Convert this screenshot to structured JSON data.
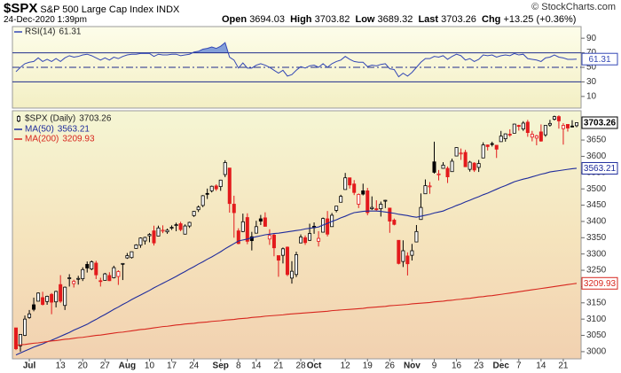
{
  "header": {
    "symbol": "$SPX",
    "name": "S&P 500 Large Cap Index",
    "exchange": "INDX",
    "datetime": "24-Dec-2020 1:39pm",
    "copyright": "© StockCharts.com",
    "quote_labels": [
      "Open",
      "High",
      "Low",
      "Last"
    ],
    "change_label": "Chg",
    "change": "+13.25 (+0.36%)"
  },
  "chart_data": [
    {
      "type": "rsi",
      "name": "RSI(14)",
      "color": "#3347b5",
      "fill_color": "#6d8fd8",
      "band_color": "#1f2c8c",
      "ylim": [
        -6,
        106
      ],
      "yticks": [
        10,
        30,
        50,
        70,
        90
      ],
      "bands": [
        70,
        30
      ],
      "midline": 50,
      "values": [
        44,
        50,
        55,
        57,
        58,
        63,
        58,
        61,
        58,
        62,
        58,
        63,
        66,
        64,
        65,
        67,
        68,
        66,
        63,
        60,
        63,
        60,
        64,
        62,
        65,
        67,
        68,
        68,
        69,
        69,
        69,
        65,
        68,
        67,
        67,
        68,
        68,
        66,
        67,
        68,
        71,
        72,
        75,
        76,
        78,
        76,
        79,
        84,
        64,
        60,
        49,
        56,
        49,
        49,
        53,
        55,
        53,
        50,
        46,
        42,
        46,
        38,
        40,
        46,
        51,
        49,
        52,
        53,
        50,
        55,
        50,
        55,
        58,
        60,
        65,
        61,
        58,
        57,
        57,
        51,
        53,
        52,
        54,
        55,
        48,
        47,
        37,
        42,
        38,
        43,
        50,
        57,
        62,
        62,
        65,
        64,
        66,
        61,
        65,
        68,
        66,
        60,
        62,
        58,
        61,
        67,
        66,
        67,
        64,
        66,
        67,
        66,
        69,
        67,
        68,
        62,
        61,
        60,
        58,
        63,
        64,
        67,
        64,
        63,
        61,
        61,
        61.31
      ]
    },
    {
      "type": "candlestick",
      "name": "$SPX (Daily)",
      "up_color": "#000000",
      "down_color": "#e31a1c",
      "ylim": [
        2978,
        3740
      ],
      "yticks": [
        3000,
        3050,
        3100,
        3150,
        3200,
        3250,
        3300,
        3350,
        3400,
        3450,
        3500,
        3550,
        3600,
        3650
      ],
      "categories": [
        null,
        null,
        null,
        "Jul",
        null,
        null,
        null,
        null,
        null,
        null,
        "13",
        null,
        null,
        null,
        null,
        "20",
        null,
        null,
        null,
        null,
        "27",
        null,
        null,
        null,
        null,
        "Aug",
        null,
        null,
        null,
        null,
        "10",
        null,
        null,
        null,
        null,
        "17",
        null,
        null,
        null,
        null,
        "24",
        null,
        null,
        null,
        null,
        null,
        "Sep",
        null,
        null,
        null,
        "8",
        null,
        null,
        null,
        "14",
        null,
        null,
        null,
        null,
        "21",
        null,
        null,
        null,
        null,
        "28",
        null,
        null,
        "Oct",
        null,
        null,
        null,
        null,
        null,
        null,
        "12",
        null,
        null,
        null,
        null,
        "19",
        null,
        null,
        null,
        null,
        "26",
        null,
        null,
        null,
        null,
        "Nov",
        null,
        null,
        null,
        null,
        "9",
        null,
        null,
        null,
        null,
        "16",
        null,
        null,
        null,
        null,
        "23",
        null,
        null,
        null,
        null,
        "Dec",
        null,
        null,
        null,
        "7",
        null,
        null,
        null,
        null,
        "14",
        null,
        null,
        null,
        null,
        "21",
        null,
        null,
        null
      ],
      "open": [
        3073,
        3018,
        3050,
        3105,
        3144,
        3155,
        3166,
        3154,
        3176,
        3153,
        3206,
        3142,
        3225,
        3209,
        3225,
        3224,
        3268,
        3254,
        3272,
        3218,
        3219,
        3234,
        3227,
        3231,
        3270,
        3288,
        3289,
        3317,
        3327,
        3340,
        3356,
        3371,
        3355,
        3373,
        3368,
        3380,
        3388,
        3393,
        3361,
        3386,
        3418,
        3436,
        3449,
        3486,
        3494,
        3509,
        3507,
        3544,
        3564,
        3453,
        3371,
        3369,
        3412,
        3353,
        3364,
        3408,
        3411,
        3346,
        3358,
        3295,
        3296,
        3321,
        3226,
        3237,
        3334,
        3350,
        3342,
        3385,
        3339,
        3367,
        3408,
        3384,
        3434,
        3459,
        3498,
        3534,
        3515,
        3453,
        3494,
        3494,
        3439,
        3439,
        3439,
        3465,
        3441,
        3404,
        3342,
        3277,
        3294,
        3296,
        3337,
        3406,
        3485,
        3509,
        3583,
        3544,
        3563,
        3563,
        3553,
        3601,
        3610,
        3612,
        3560,
        3579,
        3566,
        3595,
        3635,
        3639,
        3634,
        3645,
        3654,
        3668,
        3671,
        3695,
        3684,
        3705,
        3659,
        3656,
        3675,
        3666,
        3696,
        3714,
        3722,
        3685,
        3698,
        3693,
        3694.03
      ],
      "high": [
        3073,
        3054,
        3111,
        3128,
        3166,
        3182,
        3184,
        3172,
        3180,
        3187,
        3235,
        3200,
        3238,
        3221,
        3233,
        3259,
        3277,
        3280,
        3279,
        3227,
        3242,
        3244,
        3264,
        3250,
        3272,
        3303,
        3307,
        3330,
        3351,
        3353,
        3364,
        3387,
        3387,
        3388,
        3378,
        3388,
        3396,
        3399,
        3391,
        3399,
        3432,
        3449,
        3481,
        3501,
        3510,
        3514,
        3528,
        3588,
        3564,
        3479,
        3379,
        3424,
        3425,
        3368,
        3402,
        3420,
        3428,
        3376,
        3362,
        3295,
        3320,
        3323,
        3278,
        3307,
        3360,
        3357,
        3393,
        3397,
        3370,
        3412,
        3432,
        3426,
        3447,
        3482,
        3549,
        3534,
        3527,
        3486,
        3516,
        3503,
        3477,
        3465,
        3461,
        3466,
        3441,
        3409,
        3342,
        3342,
        3305,
        3331,
        3389,
        3486,
        3529,
        3521,
        3645,
        3558,
        3582,
        3569,
        3593,
        3628,
        3624,
        3620,
        3586,
        3582,
        3589,
        3643,
        3636,
        3645,
        3634,
        3678,
        3670,
        3683,
        3700,
        3697,
        3708,
        3712,
        3678,
        3666,
        3698,
        3695,
        3712,
        3725,
        3726,
        3702,
        3698,
        3711,
        3703.82
      ],
      "low": [
        3005,
        3000,
        3048,
        3101,
        3124,
        3155,
        3142,
        3144,
        3115,
        3136,
        3150,
        3128,
        3200,
        3197,
        3206,
        3217,
        3243,
        3250,
        3223,
        3200,
        3219,
        3217,
        3225,
        3205,
        3220,
        3285,
        3286,
        3317,
        3319,
        3329,
        3336,
        3326,
        3355,
        3364,
        3362,
        3374,
        3370,
        3370,
        3360,
        3380,
        3414,
        3429,
        3444,
        3469,
        3489,
        3494,
        3494,
        3536,
        3427,
        3350,
        3330,
        3367,
        3330,
        3311,
        3364,
        3389,
        3384,
        3328,
        3293,
        3230,
        3271,
        3232,
        3209,
        3229,
        3333,
        3328,
        3340,
        3362,
        3323,
        3367,
        3354,
        3384,
        3428,
        3459,
        3498,
        3501,
        3481,
        3441,
        3480,
        3419,
        3435,
        3433,
        3415,
        3441,
        3365,
        3388,
        3268,
        3260,
        3234,
        3280,
        3337,
        3405,
        3485,
        3485,
        3547,
        3526,
        3563,
        3518,
        3553,
        3601,
        3589,
        3568,
        3553,
        3552,
        3552,
        3595,
        3618,
        3630,
        3595,
        3645,
        3645,
        3660,
        3671,
        3679,
        3678,
        3660,
        3646,
        3634,
        3645,
        3660,
        3691,
        3710,
        3685,
        3636,
        3676,
        3689,
        3689.32
      ],
      "close": [
        3009,
        3053,
        3100,
        3116,
        3130,
        3180,
        3145,
        3170,
        3152,
        3185,
        3155,
        3198,
        3227,
        3216,
        3225,
        3252,
        3257,
        3276,
        3236,
        3216,
        3239,
        3218,
        3258,
        3246,
        3271,
        3295,
        3307,
        3328,
        3349,
        3351,
        3360,
        3334,
        3380,
        3373,
        3373,
        3382,
        3390,
        3375,
        3386,
        3397,
        3431,
        3444,
        3479,
        3485,
        3508,
        3500,
        3527,
        3581,
        3455,
        3427,
        3332,
        3399,
        3339,
        3341,
        3384,
        3401,
        3385,
        3357,
        3319,
        3281,
        3316,
        3237,
        3247,
        3298,
        3352,
        3335,
        3363,
        3381,
        3348,
        3409,
        3361,
        3419,
        3447,
        3477,
        3534,
        3512,
        3489,
        3483,
        3484,
        3427,
        3443,
        3436,
        3453,
        3465,
        3401,
        3391,
        3271,
        3310,
        3270,
        3310,
        3369,
        3443,
        3510,
        3509,
        3551,
        3546,
        3573,
        3537,
        3585,
        3627,
        3610,
        3568,
        3582,
        3558,
        3578,
        3635,
        3630,
        3638,
        3622,
        3662,
        3669,
        3667,
        3699,
        3692,
        3702,
        3673,
        3668,
        3663,
        3647,
        3695,
        3701,
        3722,
        3709,
        3695,
        3687,
        3690.01,
        3703.26
      ],
      "series": [
        {
          "name": "MA(50)",
          "color": "#1f2c9c",
          "values": [
            2990,
            2996,
            3002,
            3008,
            3014,
            3019,
            3024,
            3030,
            3035,
            3041,
            3047,
            3053,
            3059,
            3066,
            3072,
            3078,
            3084,
            3092,
            3099,
            3107,
            3114,
            3122,
            3130,
            3137,
            3145,
            3152,
            3160,
            3167,
            3174,
            3181,
            3188,
            3196,
            3203,
            3210,
            3217,
            3224,
            3231,
            3239,
            3246,
            3254,
            3261,
            3269,
            3276,
            3284,
            3291,
            3299,
            3307,
            3316,
            3324,
            3332,
            3340,
            3343,
            3346,
            3350,
            3353,
            3356,
            3359,
            3361,
            3363,
            3364,
            3366,
            3368,
            3370,
            3372,
            3374,
            3377,
            3379,
            3381,
            3383,
            3389,
            3394,
            3400,
            3405,
            3411,
            3416,
            3422,
            3427,
            3429,
            3431,
            3432,
            3432,
            3432,
            3431,
            3429,
            3427,
            3425,
            3422,
            3420,
            3418,
            3415,
            3413,
            3416,
            3419,
            3422,
            3426,
            3429,
            3432,
            3438,
            3443,
            3449,
            3454,
            3460,
            3465,
            3471,
            3476,
            3482,
            3487,
            3493,
            3499,
            3505,
            3510,
            3516,
            3522,
            3526,
            3530,
            3533,
            3537,
            3541,
            3545,
            3548,
            3552,
            3554,
            3556,
            3558,
            3560,
            3562,
            3563.21
          ]
        },
        {
          "name": "MA(200)",
          "color": "#d7261e",
          "values": [
            3019,
            3021,
            3022,
            3024,
            3026,
            3027,
            3029,
            3031,
            3033,
            3034,
            3036,
            3038,
            3039,
            3041,
            3043,
            3044,
            3046,
            3048,
            3050,
            3051,
            3053,
            3055,
            3057,
            3059,
            3060,
            3062,
            3064,
            3066,
            3068,
            3069,
            3071,
            3073,
            3075,
            3077,
            3078,
            3080,
            3082,
            3083,
            3085,
            3086,
            3087,
            3089,
            3090,
            3091,
            3093,
            3094,
            3095,
            3097,
            3098,
            3099,
            3101,
            3102,
            3103,
            3105,
            3106,
            3107,
            3109,
            3110,
            3111,
            3112,
            3113,
            3115,
            3116,
            3117,
            3118,
            3119,
            3120,
            3121,
            3122,
            3123,
            3124,
            3126,
            3127,
            3128,
            3129,
            3130,
            3131,
            3132,
            3133,
            3135,
            3136,
            3137,
            3138,
            3139,
            3141,
            3142,
            3143,
            3144,
            3145,
            3147,
            3148,
            3149,
            3150,
            3151,
            3153,
            3154,
            3155,
            3157,
            3158,
            3160,
            3161,
            3163,
            3164,
            3166,
            3168,
            3169,
            3171,
            3172,
            3174,
            3176,
            3178,
            3180,
            3182,
            3184,
            3186,
            3188,
            3190,
            3192,
            3194,
            3196,
            3198,
            3200,
            3202,
            3204,
            3206,
            3208,
            3209.93
          ]
        }
      ]
    }
  ]
}
